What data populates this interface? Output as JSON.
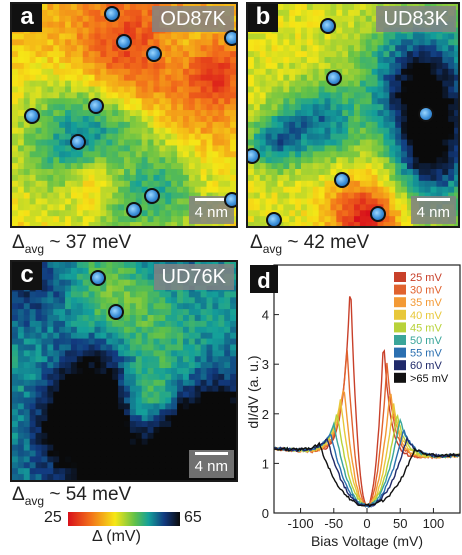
{
  "panels": [
    {
      "id": "a",
      "label": "a",
      "sample": "OD87K",
      "scale": "4 nm",
      "delta_avg": "37 meV",
      "seed": 11,
      "bias": 0.35
    },
    {
      "id": "b",
      "label": "b",
      "sample": "UD83K",
      "scale": "4 nm",
      "delta_avg": "42 meV",
      "seed": 23,
      "bias": 0.45
    },
    {
      "id": "c",
      "label": "c",
      "sample": "UD76K",
      "scale": "4 nm",
      "delta_avg": "54 meV",
      "seed": 37,
      "bias": 0.72
    }
  ],
  "colorbar": {
    "min": "25",
    "max": "65",
    "label": "Δ (mV)"
  },
  "panel_d": {
    "label": "d"
  },
  "colors": {
    "gap_low": "#d8101a",
    "gap_mid": "#f6e716",
    "gap_high": "#0a0a0a",
    "impurity": "#3b8fd8"
  },
  "chart_data": {
    "type": "line",
    "xlabel": "Bias Voltage (mV)",
    "ylabel": "dI/dV (a. u.)",
    "xlim": [
      -140,
      140
    ],
    "ylim": [
      0,
      5
    ],
    "xticks": [
      -100,
      -50,
      0,
      50,
      100
    ],
    "yticks": [
      0,
      1,
      2,
      3,
      4
    ],
    "legend_position": "top-right",
    "series": [
      {
        "name": "25 mV",
        "gap": 25,
        "peak_left": 4.7,
        "peak_right": 3.5,
        "color": "#c8402a"
      },
      {
        "name": "30 mV",
        "gap": 30,
        "peak_left": 3.3,
        "peak_right": 3.0,
        "color": "#e0622e"
      },
      {
        "name": "35 mV",
        "gap": 35,
        "peak_left": 2.6,
        "peak_right": 2.5,
        "color": "#f39a35"
      },
      {
        "name": "40 mV",
        "gap": 40,
        "peak_left": 2.3,
        "peak_right": 2.2,
        "color": "#e8c83a"
      },
      {
        "name": "45 mV",
        "gap": 45,
        "peak_left": 2.0,
        "peak_right": 2.0,
        "color": "#b8d23a"
      },
      {
        "name": "50 mV",
        "gap": 50,
        "peak_left": 1.8,
        "peak_right": 1.9,
        "color": "#3aa59a"
      },
      {
        "name": "55 mV",
        "gap": 55,
        "peak_left": 1.6,
        "peak_right": 1.7,
        "color": "#2b6fb0"
      },
      {
        "name": "60 mV",
        "gap": 60,
        "peak_left": 1.5,
        "peak_right": 1.5,
        "color": "#202a6a"
      },
      {
        "name": ">65 mV",
        "gap": 72,
        "peak_left": 1.4,
        "peak_right": 1.3,
        "color": "#111111"
      }
    ]
  }
}
